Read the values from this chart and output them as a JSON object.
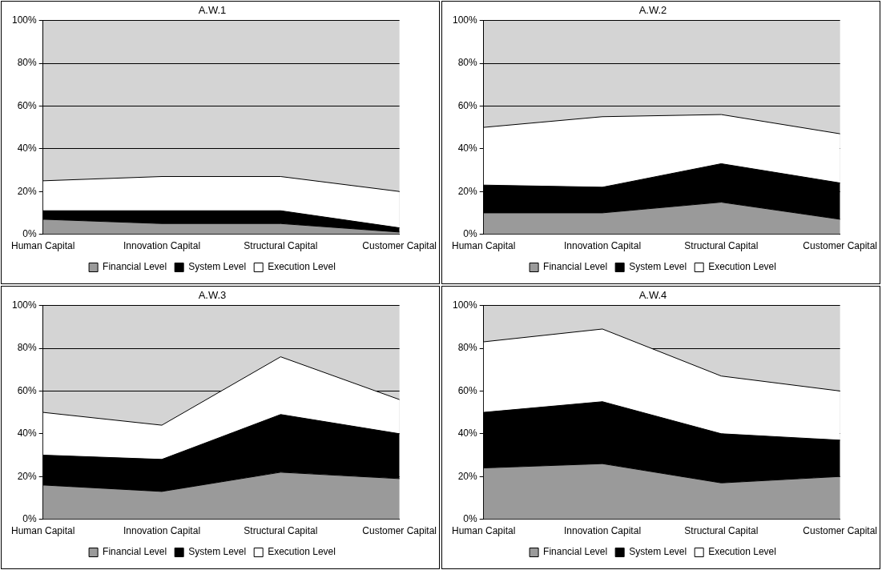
{
  "chart_data": [
    {
      "type": "area",
      "title": "A.W.1",
      "categories": [
        "Human Capital",
        "Innovation Capital",
        "Structural Capital",
        "Customer Capital"
      ],
      "stacked": true,
      "ylim": [
        0,
        100
      ],
      "yticks": [
        {
          "value": 0,
          "label": "0%"
        },
        {
          "value": 20,
          "label": "20%"
        },
        {
          "value": 40,
          "label": "40%"
        },
        {
          "value": 60,
          "label": "60%"
        },
        {
          "value": 80,
          "label": "80%"
        },
        {
          "value": 100,
          "label": "100%"
        }
      ],
      "grid": "y",
      "legend": "bottom",
      "series": [
        {
          "name": "Financial Level",
          "color": "#9a9a9a",
          "values": [
            7,
            5,
            5,
            1
          ]
        },
        {
          "name": "System Level",
          "color": "#000000",
          "values": [
            4,
            6,
            6,
            2
          ]
        },
        {
          "name": "Execution Level",
          "color": "#ffffff",
          "values": [
            14,
            16,
            16,
            17
          ]
        }
      ]
    },
    {
      "type": "area",
      "title": "A.W.2",
      "categories": [
        "Human Capital",
        "Innovation Capital",
        "Structural Capital",
        "Customer Capital"
      ],
      "stacked": true,
      "ylim": [
        0,
        100
      ],
      "yticks": [
        {
          "value": 0,
          "label": "0%"
        },
        {
          "value": 20,
          "label": "20%"
        },
        {
          "value": 40,
          "label": "40%"
        },
        {
          "value": 60,
          "label": "60%"
        },
        {
          "value": 80,
          "label": "80%"
        },
        {
          "value": 100,
          "label": "100%"
        }
      ],
      "grid": "y",
      "legend": "bottom",
      "series": [
        {
          "name": "Financial Level",
          "color": "#9a9a9a",
          "values": [
            10,
            10,
            15,
            7
          ]
        },
        {
          "name": "System Level",
          "color": "#000000",
          "values": [
            13,
            12,
            18,
            17
          ]
        },
        {
          "name": "Execution Level",
          "color": "#ffffff",
          "values": [
            27,
            33,
            23,
            23
          ]
        }
      ]
    },
    {
      "type": "area",
      "title": "A.W.3",
      "categories": [
        "Human Capital",
        "Innovation Capital",
        "Structural Capital",
        "Customer Capital"
      ],
      "stacked": true,
      "ylim": [
        0,
        100
      ],
      "yticks": [
        {
          "value": 0,
          "label": "0%"
        },
        {
          "value": 20,
          "label": "20%"
        },
        {
          "value": 40,
          "label": "40%"
        },
        {
          "value": 60,
          "label": "60%"
        },
        {
          "value": 80,
          "label": "80%"
        },
        {
          "value": 100,
          "label": "100%"
        }
      ],
      "grid": "y",
      "legend": "bottom",
      "series": [
        {
          "name": "Financial Level",
          "color": "#9a9a9a",
          "values": [
            16,
            13,
            22,
            19
          ]
        },
        {
          "name": "System Level",
          "color": "#000000",
          "values": [
            14,
            15,
            27,
            21
          ]
        },
        {
          "name": "Execution Level",
          "color": "#ffffff",
          "values": [
            20,
            16,
            27,
            16
          ]
        }
      ]
    },
    {
      "type": "area",
      "title": "A.W.4",
      "categories": [
        "Human Capital",
        "Innovation Capital",
        "Structural Capital",
        "Customer Capital"
      ],
      "stacked": true,
      "ylim": [
        0,
        100
      ],
      "yticks": [
        {
          "value": 0,
          "label": "0%"
        },
        {
          "value": 20,
          "label": "20%"
        },
        {
          "value": 40,
          "label": "40%"
        },
        {
          "value": 60,
          "label": "60%"
        },
        {
          "value": 80,
          "label": "80%"
        },
        {
          "value": 100,
          "label": "100%"
        }
      ],
      "grid": "y",
      "legend": "bottom",
      "series": [
        {
          "name": "Financial Level",
          "color": "#9a9a9a",
          "values": [
            24,
            26,
            17,
            20
          ]
        },
        {
          "name": "System Level",
          "color": "#000000",
          "values": [
            26,
            29,
            23,
            17
          ]
        },
        {
          "name": "Execution Level",
          "color": "#ffffff",
          "values": [
            33,
            34,
            27,
            23
          ]
        }
      ]
    }
  ]
}
